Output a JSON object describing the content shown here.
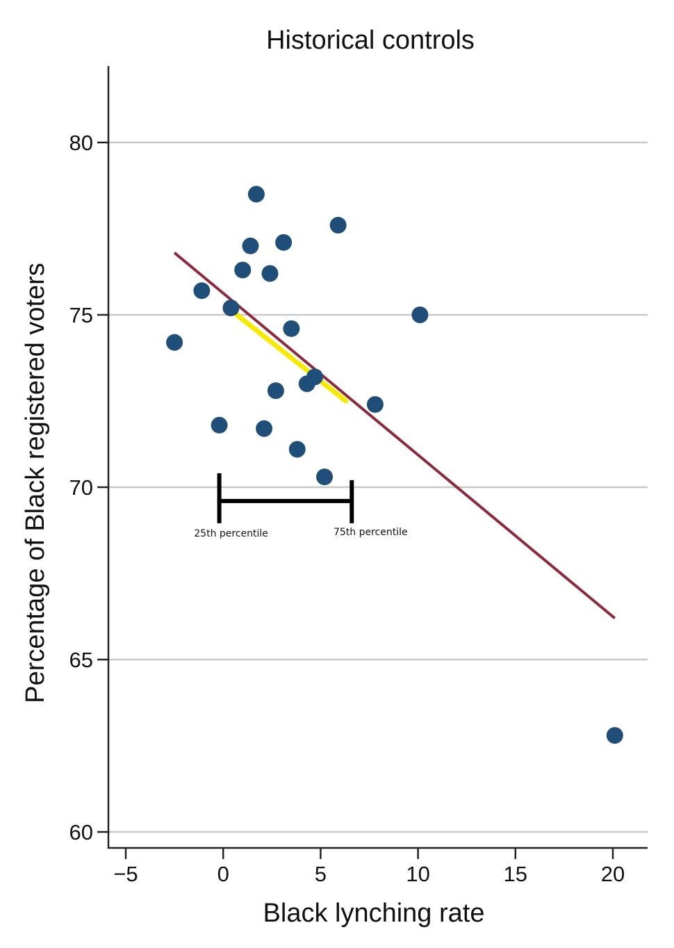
{
  "chart_data": {
    "type": "scatter",
    "title": "Historical controls",
    "xlabel": "Black lynching rate",
    "ylabel": "Percentage of Black registered voters",
    "xlim": [
      -5.8,
      21.7
    ],
    "ylim": [
      59.5,
      82.2
    ],
    "x_ticks": [
      -5,
      0,
      5,
      10,
      15,
      20
    ],
    "x_tick_labels": [
      "−5",
      "0",
      "5",
      "10",
      "15",
      "20"
    ],
    "y_ticks": [
      60,
      65,
      70,
      75,
      80
    ],
    "y_tick_labels": [
      "60",
      "65",
      "70",
      "75",
      "80"
    ],
    "grid": "horizontal",
    "colors": {
      "points": "#1f4e79",
      "fit_line": "#8b2a3d",
      "highlight": "#f5ea00",
      "bracket": "#000000",
      "grid": "#c8c8c8",
      "axis": "#222222"
    },
    "points": [
      {
        "x": -2.5,
        "y": 74.2
      },
      {
        "x": -1.1,
        "y": 75.7
      },
      {
        "x": -0.2,
        "y": 71.8
      },
      {
        "x": 0.4,
        "y": 75.2
      },
      {
        "x": 1.0,
        "y": 76.3
      },
      {
        "x": 1.4,
        "y": 77.0
      },
      {
        "x": 1.7,
        "y": 78.5
      },
      {
        "x": 2.1,
        "y": 71.7
      },
      {
        "x": 2.4,
        "y": 76.2
      },
      {
        "x": 2.7,
        "y": 72.8
      },
      {
        "x": 3.1,
        "y": 77.1
      },
      {
        "x": 3.5,
        "y": 74.6
      },
      {
        "x": 3.8,
        "y": 71.1
      },
      {
        "x": 4.3,
        "y": 73.0
      },
      {
        "x": 4.7,
        "y": 73.2
      },
      {
        "x": 5.2,
        "y": 70.3
      },
      {
        "x": 5.9,
        "y": 77.6
      },
      {
        "x": 7.8,
        "y": 72.4
      },
      {
        "x": 10.1,
        "y": 75.0
      },
      {
        "x": 20.1,
        "y": 62.8
      }
    ],
    "fit_line": {
      "x": [
        -2.5,
        20.1
      ],
      "y": [
        76.8,
        66.2
      ]
    },
    "highlight_segment": {
      "x": [
        0.7,
        6.3
      ],
      "y": [
        75.0,
        72.5
      ]
    },
    "percentile_bracket": {
      "x": [
        -0.2,
        6.6
      ],
      "y": 69.6,
      "labels": [
        "25th percentile",
        "75th percentile"
      ]
    }
  }
}
